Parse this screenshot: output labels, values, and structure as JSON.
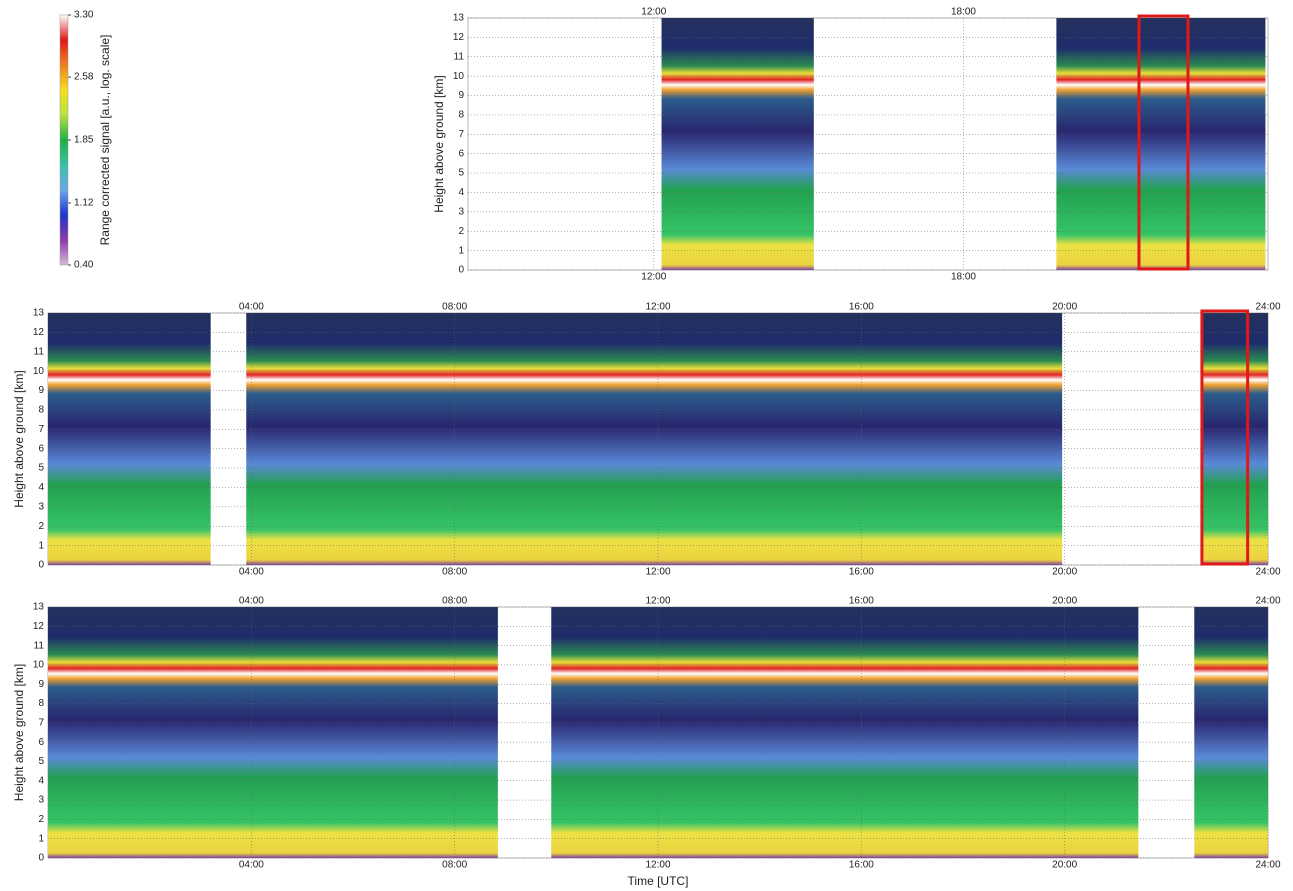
{
  "chart_data": [
    {
      "type": "colorbar",
      "label": "Range corrected signal [a.u., log. scale]",
      "lim": [
        0.4,
        3.3
      ],
      "ticks": [
        {
          "value": 0.4,
          "label": "0.40"
        },
        {
          "value": 1.12,
          "label": "1.12"
        },
        {
          "value": 1.85,
          "label": "1.85"
        },
        {
          "value": 2.58,
          "label": "2.58"
        },
        {
          "value": 3.3,
          "label": "3.30"
        }
      ],
      "colors": [
        "#d8b8d8",
        "#8a3aa8",
        "#2234d0",
        "#6aa8e8",
        "#3cc0a8",
        "#1eb040",
        "#b8e040",
        "#f4e020",
        "#f08020",
        "#e01818",
        "#ffffff"
      ]
    },
    {
      "type": "heatmap",
      "ylabel": "Height above ground [km]",
      "xlim": [
        8.4,
        23.9
      ],
      "ylim": [
        0,
        13
      ],
      "yticks": [
        0,
        1,
        2,
        3,
        4,
        5,
        6,
        7,
        8,
        9,
        10,
        11,
        12,
        13
      ],
      "xticks": [
        {
          "value": 12,
          "label": "12:00"
        },
        {
          "value": 18,
          "label": "18:00"
        }
      ],
      "data_segments": [
        [
          12.15,
          15.1
        ],
        [
          19.8,
          23.85
        ]
      ],
      "highlight": [
        21.4,
        22.35
      ],
      "highlight_color": "#e01818"
    },
    {
      "type": "heatmap",
      "ylabel": "Height above ground [km]",
      "xlim": [
        0,
        24
      ],
      "ylim": [
        0,
        13
      ],
      "yticks": [
        0,
        1,
        2,
        3,
        4,
        5,
        6,
        7,
        8,
        9,
        10,
        11,
        12,
        13
      ],
      "xticks": [
        {
          "value": 4,
          "label": "04:00"
        },
        {
          "value": 8,
          "label": "08:00"
        },
        {
          "value": 12,
          "label": "12:00"
        },
        {
          "value": 16,
          "label": "16:00"
        },
        {
          "value": 20,
          "label": "20:00"
        },
        {
          "value": 24,
          "label": "24:00"
        }
      ],
      "data_segments": [
        [
          0,
          3.2
        ],
        [
          3.9,
          19.95
        ],
        [
          22.7,
          24
        ]
      ],
      "highlight": [
        22.7,
        23.6
      ],
      "highlight_color": "#e01818"
    },
    {
      "type": "heatmap",
      "ylabel": "Height above ground [km]",
      "xlabel": "Time [UTC]",
      "xlim": [
        0,
        24
      ],
      "ylim": [
        0,
        13
      ],
      "yticks": [
        0,
        1,
        2,
        3,
        4,
        5,
        6,
        7,
        8,
        9,
        10,
        11,
        12,
        13
      ],
      "xticks": [
        {
          "value": 4,
          "label": "04:00"
        },
        {
          "value": 8,
          "label": "08:00"
        },
        {
          "value": 12,
          "label": "12:00"
        },
        {
          "value": 16,
          "label": "16:00"
        },
        {
          "value": 20,
          "label": "20:00"
        },
        {
          "value": 24,
          "label": "24:00"
        }
      ],
      "data_segments": [
        [
          0,
          8.85
        ],
        [
          9.9,
          21.45
        ],
        [
          22.55,
          24
        ]
      ]
    }
  ]
}
